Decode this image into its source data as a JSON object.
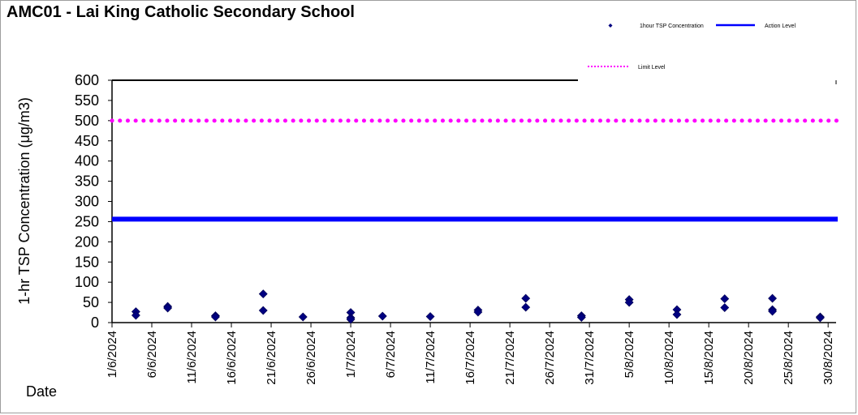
{
  "chart_data": {
    "type": "scatter",
    "title": "AMC01 - Lai King Catholic Secondary School",
    "xlabel": "Date",
    "ylabel": "1-hr TSP Concentration (μg/m3)",
    "ylim": [
      0,
      600
    ],
    "yticks": [
      "0",
      "50",
      "100",
      "150",
      "200",
      "250",
      "300",
      "350",
      "400",
      "450",
      "500",
      "550",
      "600"
    ],
    "xticks": [
      "1/6/2024",
      "6/6/2024",
      "11/6/2024",
      "16/6/2024",
      "21/6/2024",
      "26/6/2024",
      "1/7/2024",
      "6/7/2024",
      "11/7/2024",
      "16/7/2024",
      "21/7/2024",
      "26/7/2024",
      "31/7/2024",
      "5/8/2024",
      "10/8/2024",
      "15/8/2024",
      "20/8/2024",
      "25/8/2024",
      "30/8/2024"
    ],
    "xlim": [
      "1/6/2024",
      "31/8/2024"
    ],
    "grid": false,
    "legend_placement": "top-right",
    "series": [
      {
        "name": "1hour TSP Concentration",
        "style": "diamond-markers",
        "color": "#000080",
        "points": [
          {
            "x": "4/6/2024",
            "y": 27
          },
          {
            "x": "4/6/2024",
            "y": 18
          },
          {
            "x": "8/6/2024",
            "y": 40
          },
          {
            "x": "8/6/2024",
            "y": 36
          },
          {
            "x": "14/6/2024",
            "y": 17
          },
          {
            "x": "14/6/2024",
            "y": 14
          },
          {
            "x": "20/6/2024",
            "y": 71
          },
          {
            "x": "20/6/2024",
            "y": 30
          },
          {
            "x": "25/6/2024",
            "y": 14
          },
          {
            "x": "1/7/2024",
            "y": 25
          },
          {
            "x": "1/7/2024",
            "y": 12
          },
          {
            "x": "1/7/2024",
            "y": 8
          },
          {
            "x": "5/7/2024",
            "y": 16
          },
          {
            "x": "11/7/2024",
            "y": 15
          },
          {
            "x": "17/7/2024",
            "y": 31
          },
          {
            "x": "17/7/2024",
            "y": 26
          },
          {
            "x": "23/7/2024",
            "y": 60
          },
          {
            "x": "23/7/2024",
            "y": 38
          },
          {
            "x": "30/7/2024",
            "y": 17
          },
          {
            "x": "30/7/2024",
            "y": 13
          },
          {
            "x": "5/8/2024",
            "y": 57
          },
          {
            "x": "5/8/2024",
            "y": 50
          },
          {
            "x": "11/8/2024",
            "y": 32
          },
          {
            "x": "11/8/2024",
            "y": 20
          },
          {
            "x": "17/8/2024",
            "y": 59
          },
          {
            "x": "17/8/2024",
            "y": 37
          },
          {
            "x": "23/8/2024",
            "y": 60
          },
          {
            "x": "23/8/2024",
            "y": 32
          },
          {
            "x": "23/8/2024",
            "y": 28
          },
          {
            "x": "29/8/2024",
            "y": 14
          },
          {
            "x": "29/8/2024",
            "y": 12
          }
        ]
      },
      {
        "name": "Action Level",
        "style": "solid-line",
        "color": "#0000ff",
        "value": 256
      },
      {
        "name": "Limit Level",
        "style": "dotted-line",
        "color": "#ff00ff",
        "value": 500
      }
    ]
  }
}
